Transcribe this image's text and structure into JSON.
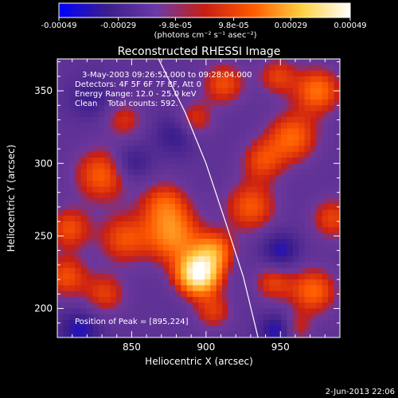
{
  "chart_data": {
    "type": "heatmap",
    "title": "Reconstructed RHESSI Image",
    "xlabel": "Heliocentric X (arcsec)",
    "ylabel": "Heliocentric Y (arcsec)",
    "xlim": [
      800,
      990
    ],
    "ylim": [
      180,
      372
    ],
    "xticks": [
      {
        "value": 850,
        "label": "850"
      },
      {
        "value": 900,
        "label": "900"
      },
      {
        "value": 950,
        "label": "950"
      }
    ],
    "yticks": [
      {
        "value": 200,
        "label": "200"
      },
      {
        "value": 250,
        "label": "250"
      },
      {
        "value": 300,
        "label": "300"
      },
      {
        "value": 350,
        "label": "350"
      }
    ],
    "colorbar": {
      "range": [
        -0.00049,
        0.00049
      ],
      "labels": [
        "-0.00049",
        "-0.00029",
        "-9.8e-05",
        "9.8e-05",
        "0.00029",
        "0.00049"
      ],
      "label_values": [
        -0.00049,
        -0.00029,
        -9.8e-05,
        9.8e-05,
        0.00029,
        0.00049
      ],
      "unit_label": "(photons cm⁻² s⁻¹ asec⁻²)",
      "colors": [
        "#0000ff",
        "#3c1e8c",
        "#6a3aa8",
        "#c81e14",
        "#ff5a00",
        "#ffd040",
        "#ffffff"
      ]
    },
    "annotations": [
      "3-May-2003 09:26:52.000 to 09:28:04.000",
      "Detectors: 4F 5F 6F 7F 8F, Att 0",
      "Energy Range: 12.0 - 25.0 keV",
      "Clean    Total counts: 592."
    ],
    "peak_label": "Position of Peak = [895,224]",
    "peak": {
      "x": 895,
      "y": 224
    },
    "limb_curve": [
      {
        "x": 868,
        "y": 372
      },
      {
        "x": 886,
        "y": 335
      },
      {
        "x": 900,
        "y": 300
      },
      {
        "x": 913,
        "y": 260
      },
      {
        "x": 925,
        "y": 222
      },
      {
        "x": 935,
        "y": 180
      }
    ],
    "sources": [
      {
        "x": 895,
        "y": 224,
        "amp": 1.0,
        "sigma": 10
      },
      {
        "x": 906,
        "y": 240,
        "amp": 0.45,
        "sigma": 9
      },
      {
        "x": 878,
        "y": 250,
        "amp": 0.5,
        "sigma": 13
      },
      {
        "x": 845,
        "y": 248,
        "amp": 0.35,
        "sigma": 12
      },
      {
        "x": 872,
        "y": 272,
        "amp": 0.35,
        "sigma": 11
      },
      {
        "x": 830,
        "y": 292,
        "amp": 0.4,
        "sigma": 13
      },
      {
        "x": 808,
        "y": 255,
        "amp": 0.35,
        "sigma": 10
      },
      {
        "x": 806,
        "y": 222,
        "amp": 0.35,
        "sigma": 10
      },
      {
        "x": 832,
        "y": 210,
        "amp": 0.3,
        "sigma": 10
      },
      {
        "x": 930,
        "y": 270,
        "amp": 0.38,
        "sigma": 12
      },
      {
        "x": 938,
        "y": 302,
        "amp": 0.32,
        "sigma": 10
      },
      {
        "x": 958,
        "y": 318,
        "amp": 0.42,
        "sigma": 12
      },
      {
        "x": 975,
        "y": 350,
        "amp": 0.45,
        "sigma": 11
      },
      {
        "x": 948,
        "y": 360,
        "amp": 0.3,
        "sigma": 9
      },
      {
        "x": 912,
        "y": 355,
        "amp": 0.35,
        "sigma": 10
      },
      {
        "x": 892,
        "y": 330,
        "amp": 0.3,
        "sigma": 9
      },
      {
        "x": 972,
        "y": 212,
        "amp": 0.42,
        "sigma": 11
      },
      {
        "x": 945,
        "y": 218,
        "amp": 0.3,
        "sigma": 9
      },
      {
        "x": 985,
        "y": 262,
        "amp": 0.32,
        "sigma": 10
      },
      {
        "x": 905,
        "y": 198,
        "amp": 0.28,
        "sigma": 9
      },
      {
        "x": 960,
        "y": 186,
        "amp": 0.25,
        "sigma": 8
      },
      {
        "x": 845,
        "y": 330,
        "amp": 0.25,
        "sigma": 9
      },
      {
        "x": 815,
        "y": 185,
        "amp": -0.3,
        "sigma": 10
      },
      {
        "x": 850,
        "y": 300,
        "amp": -0.25,
        "sigma": 9
      },
      {
        "x": 948,
        "y": 185,
        "amp": -0.35,
        "sigma": 8
      },
      {
        "x": 880,
        "y": 320,
        "amp": -0.25,
        "sigma": 10
      },
      {
        "x": 950,
        "y": 240,
        "amp": -0.3,
        "sigma": 9
      },
      {
        "x": 822,
        "y": 345,
        "amp": -0.2,
        "sigma": 10
      }
    ]
  },
  "footer": {
    "date": "2-Jun-2013 22:06"
  }
}
